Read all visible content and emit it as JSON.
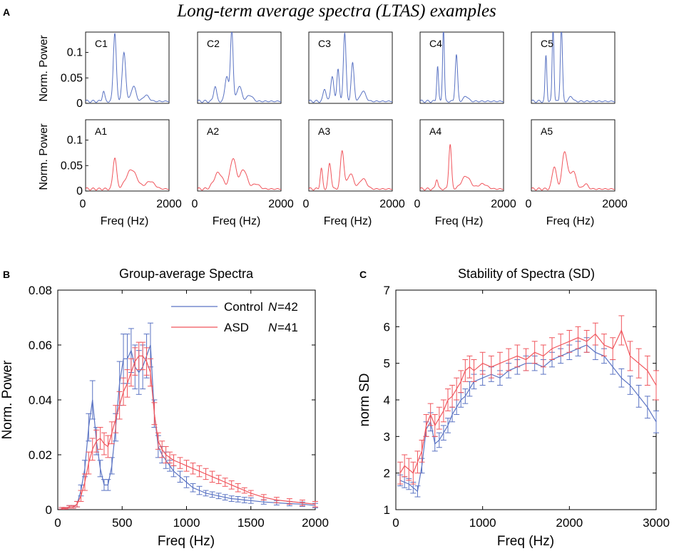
{
  "figure_title": "Long-term average spectra (LTAS) examples",
  "colors": {
    "control": "#5a73c3",
    "asd": "#f0555c",
    "axis": "#000000"
  },
  "chart_data": [
    {
      "id": "A",
      "type": "line",
      "panel_letter": "A",
      "ylabel": "Norm. Power",
      "xlabel": "Freq (Hz)",
      "xlim": [
        0,
        2000
      ],
      "ylim": [
        0,
        0.14
      ],
      "xticks": [
        "0",
        "2000"
      ],
      "yticks": [
        "0",
        "0.05",
        "0.1"
      ],
      "control_panels": [
        {
          "label": "C1",
          "peaks": [
            [
              430,
              0.02,
              40
            ],
            [
              700,
              0.135,
              50
            ],
            [
              920,
              0.095,
              60
            ],
            [
              1150,
              0.03,
              80
            ],
            [
              1450,
              0.012,
              100
            ]
          ]
        },
        {
          "label": "C2",
          "peaks": [
            [
              420,
              0.03,
              50
            ],
            [
              700,
              0.05,
              60
            ],
            [
              820,
              0.143,
              45
            ],
            [
              1000,
              0.03,
              80
            ],
            [
              1250,
              0.012,
              100
            ]
          ]
        },
        {
          "label": "C3",
          "peaks": [
            [
              380,
              0.025,
              50
            ],
            [
              560,
              0.05,
              50
            ],
            [
              700,
              0.065,
              40
            ],
            [
              860,
              0.135,
              45
            ],
            [
              1050,
              0.075,
              50
            ],
            [
              1300,
              0.02,
              90
            ]
          ]
        },
        {
          "label": "C4",
          "peaks": [
            [
              420,
              0.07,
              30
            ],
            [
              560,
              0.145,
              30
            ],
            [
              870,
              0.092,
              40
            ],
            [
              1100,
              0.01,
              80
            ]
          ]
        },
        {
          "label": "C5",
          "peaks": [
            [
              350,
              0.09,
              30
            ],
            [
              520,
              0.145,
              30
            ],
            [
              720,
              0.148,
              35
            ],
            [
              950,
              0.01,
              60
            ]
          ]
        }
      ],
      "asd_panels": [
        {
          "label": "A1",
          "peaks": [
            [
              700,
              0.062,
              60
            ],
            [
              1100,
              0.038,
              180
            ],
            [
              1550,
              0.015,
              150
            ]
          ]
        },
        {
          "label": "A2",
          "peaks": [
            [
              500,
              0.032,
              150
            ],
            [
              850,
              0.06,
              100
            ],
            [
              1100,
              0.038,
              120
            ],
            [
              1400,
              0.01,
              120
            ]
          ]
        },
        {
          "label": "A3",
          "peaks": [
            [
              300,
              0.04,
              40
            ],
            [
              500,
              0.05,
              50
            ],
            [
              800,
              0.075,
              60
            ],
            [
              1000,
              0.03,
              100
            ],
            [
              1300,
              0.02,
              120
            ]
          ]
        },
        {
          "label": "A4",
          "peaks": [
            [
              400,
              0.02,
              40
            ],
            [
              720,
              0.088,
              45
            ],
            [
              1100,
              0.025,
              150
            ],
            [
              1500,
              0.01,
              150
            ]
          ]
        },
        {
          "label": "A5",
          "peaks": [
            [
              550,
              0.045,
              70
            ],
            [
              800,
              0.073,
              90
            ],
            [
              1000,
              0.035,
              100
            ],
            [
              1300,
              0.01,
              80
            ]
          ]
        }
      ]
    },
    {
      "id": "B",
      "type": "line",
      "panel_letter": "B",
      "title": "Group-average Spectra",
      "xlabel": "Freq (Hz)",
      "ylabel": "Norm. Power",
      "xlim": [
        0,
        2000
      ],
      "ylim": [
        0,
        0.08
      ],
      "xticks": [
        "0",
        "500",
        "1000",
        "1500",
        "2000"
      ],
      "yticks": [
        "0",
        "0.02",
        "0.04",
        "0.06",
        "0.08"
      ],
      "legend": [
        {
          "name": "Control",
          "n_label": "N",
          "n_value": "=42"
        },
        {
          "name": "ASD",
          "n_label": "N",
          "n_value": "=41"
        }
      ],
      "series": [
        {
          "name": "Control",
          "x": [
            30,
            60,
            90,
            120,
            150,
            180,
            210,
            240,
            270,
            300,
            330,
            360,
            390,
            420,
            450,
            480,
            510,
            540,
            570,
            600,
            630,
            660,
            690,
            720,
            750,
            780,
            810,
            840,
            870,
            900,
            950,
            1000,
            1050,
            1100,
            1150,
            1200,
            1250,
            1300,
            1350,
            1400,
            1450,
            1500,
            1600,
            1700,
            1800,
            1900,
            2000
          ],
          "y": [
            0.0005,
            0.0005,
            0.001,
            0.001,
            0.002,
            0.007,
            0.015,
            0.03,
            0.04,
            0.025,
            0.015,
            0.009,
            0.009,
            0.016,
            0.03,
            0.046,
            0.055,
            0.055,
            0.058,
            0.052,
            0.05,
            0.052,
            0.056,
            0.06,
            0.035,
            0.023,
            0.02,
            0.018,
            0.016,
            0.014,
            0.012,
            0.01,
            0.008,
            0.007,
            0.006,
            0.0055,
            0.005,
            0.0045,
            0.004,
            0.0038,
            0.0035,
            0.0033,
            0.0028,
            0.0025,
            0.0022,
            0.002,
            0.0015
          ],
          "err": [
            0.0003,
            0.0003,
            0.0005,
            0.0005,
            0.001,
            0.002,
            0.003,
            0.005,
            0.007,
            0.005,
            0.003,
            0.002,
            0.002,
            0.003,
            0.005,
            0.008,
            0.009,
            0.009,
            0.008,
            0.008,
            0.008,
            0.008,
            0.008,
            0.008,
            0.005,
            0.004,
            0.003,
            0.003,
            0.002,
            0.002,
            0.002,
            0.002,
            0.0015,
            0.0015,
            0.001,
            0.001,
            0.001,
            0.001,
            0.001,
            0.001,
            0.001,
            0.001,
            0.0008,
            0.0008,
            0.0008,
            0.0008,
            0.0008
          ]
        },
        {
          "name": "ASD",
          "x": [
            30,
            60,
            90,
            120,
            150,
            180,
            210,
            240,
            270,
            300,
            330,
            360,
            390,
            420,
            450,
            480,
            510,
            540,
            570,
            600,
            630,
            660,
            690,
            720,
            750,
            780,
            810,
            840,
            870,
            900,
            950,
            1000,
            1050,
            1100,
            1150,
            1200,
            1250,
            1300,
            1350,
            1400,
            1450,
            1500,
            1600,
            1700,
            1800,
            1900,
            2000
          ],
          "y": [
            0.0005,
            0.0005,
            0.001,
            0.001,
            0.002,
            0.005,
            0.01,
            0.017,
            0.022,
            0.025,
            0.026,
            0.024,
            0.023,
            0.028,
            0.033,
            0.038,
            0.043,
            0.046,
            0.05,
            0.054,
            0.056,
            0.056,
            0.054,
            0.05,
            0.035,
            0.025,
            0.022,
            0.02,
            0.019,
            0.018,
            0.017,
            0.016,
            0.015,
            0.014,
            0.013,
            0.012,
            0.011,
            0.01,
            0.009,
            0.008,
            0.007,
            0.006,
            0.0045,
            0.0035,
            0.003,
            0.0025,
            0.002
          ],
          "err": [
            0.0003,
            0.0003,
            0.0005,
            0.0005,
            0.001,
            0.002,
            0.003,
            0.004,
            0.004,
            0.004,
            0.004,
            0.004,
            0.004,
            0.004,
            0.005,
            0.005,
            0.005,
            0.005,
            0.005,
            0.005,
            0.005,
            0.005,
            0.005,
            0.005,
            0.004,
            0.003,
            0.003,
            0.003,
            0.002,
            0.002,
            0.002,
            0.002,
            0.002,
            0.002,
            0.002,
            0.002,
            0.0015,
            0.0015,
            0.0015,
            0.0015,
            0.001,
            0.001,
            0.001,
            0.001,
            0.001,
            0.001,
            0.001
          ]
        }
      ]
    },
    {
      "id": "C",
      "type": "line",
      "panel_letter": "C",
      "title": "Stability of Spectra (SD)",
      "xlabel": "Freq (Hz)",
      "ylabel": "norm SD",
      "xlim": [
        0,
        3000
      ],
      "ylim": [
        1,
        7
      ],
      "xticks": [
        "0",
        "1000",
        "2000",
        "3000"
      ],
      "yticks": [
        "1",
        "2",
        "3",
        "4",
        "5",
        "6",
        "7"
      ],
      "series": [
        {
          "name": "Control",
          "x": [
            50,
            100,
            150,
            200,
            250,
            300,
            350,
            400,
            450,
            500,
            550,
            600,
            650,
            700,
            750,
            800,
            850,
            900,
            1000,
            1100,
            1200,
            1300,
            1400,
            1500,
            1600,
            1700,
            1800,
            1900,
            2000,
            2100,
            2200,
            2300,
            2400,
            2500,
            2600,
            2700,
            2800,
            2900,
            3000
          ],
          "y": [
            1.8,
            1.75,
            1.7,
            1.6,
            1.5,
            2.2,
            3.2,
            3.4,
            2.8,
            2.9,
            3.1,
            3.3,
            3.6,
            3.8,
            4.0,
            4.1,
            4.3,
            4.5,
            4.6,
            4.7,
            4.6,
            4.8,
            4.9,
            5.0,
            5.0,
            4.9,
            5.1,
            5.2,
            5.3,
            5.4,
            5.5,
            5.3,
            5.2,
            4.9,
            4.6,
            4.4,
            4.1,
            3.8,
            3.4
          ],
          "err": [
            0.15,
            0.15,
            0.15,
            0.15,
            0.15,
            0.2,
            0.2,
            0.25,
            0.2,
            0.2,
            0.2,
            0.2,
            0.2,
            0.2,
            0.2,
            0.2,
            0.2,
            0.2,
            0.2,
            0.2,
            0.2,
            0.2,
            0.2,
            0.2,
            0.2,
            0.2,
            0.2,
            0.2,
            0.2,
            0.2,
            0.2,
            0.2,
            0.2,
            0.2,
            0.25,
            0.25,
            0.3,
            0.3,
            0.3
          ]
        },
        {
          "name": "ASD",
          "x": [
            50,
            100,
            150,
            200,
            250,
            300,
            350,
            400,
            450,
            500,
            550,
            600,
            650,
            700,
            750,
            800,
            850,
            900,
            1000,
            1100,
            1200,
            1300,
            1400,
            1500,
            1600,
            1700,
            1800,
            1900,
            2000,
            2100,
            2200,
            2300,
            2400,
            2500,
            2600,
            2700,
            2800,
            2900,
            3000
          ],
          "y": [
            2.0,
            2.2,
            2.1,
            2.0,
            2.3,
            2.6,
            3.3,
            3.6,
            3.3,
            3.5,
            3.7,
            4.0,
            4.1,
            4.3,
            4.5,
            4.8,
            4.9,
            4.8,
            5.0,
            4.9,
            5.0,
            5.1,
            5.2,
            5.1,
            5.3,
            5.2,
            5.4,
            5.5,
            5.6,
            5.7,
            5.6,
            5.8,
            5.5,
            5.4,
            5.9,
            5.2,
            5.0,
            4.8,
            4.4
          ],
          "err": [
            0.3,
            0.3,
            0.3,
            0.3,
            0.3,
            0.3,
            0.3,
            0.3,
            0.3,
            0.3,
            0.3,
            0.3,
            0.3,
            0.3,
            0.3,
            0.3,
            0.3,
            0.3,
            0.3,
            0.3,
            0.3,
            0.3,
            0.3,
            0.3,
            0.3,
            0.3,
            0.3,
            0.3,
            0.3,
            0.3,
            0.3,
            0.3,
            0.3,
            0.3,
            0.4,
            0.4,
            0.4,
            0.4,
            0.4
          ]
        }
      ]
    }
  ]
}
